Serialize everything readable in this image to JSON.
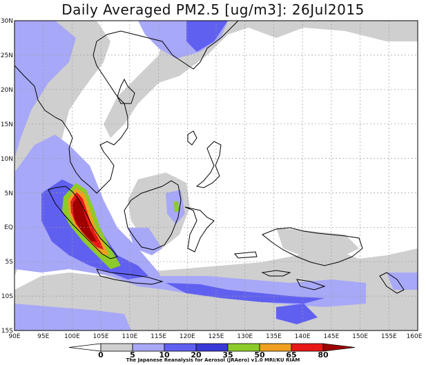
{
  "title": "Daily Averaged PM2.5 [ug/m3]: 26Jul2015",
  "x_ticks": [
    "90E",
    "95E",
    "100E",
    "105E",
    "110E",
    "115E",
    "120E",
    "125E",
    "130E",
    "135E",
    "140E",
    "145E",
    "150E",
    "155E",
    "160E"
  ],
  "y_ticks": [
    "30N",
    "25N",
    "20N",
    "15N",
    "10N",
    "5N",
    "EQ",
    "5S",
    "10S",
    "15S"
  ],
  "colorbar": {
    "labels": [
      "0",
      "5",
      "10",
      "20",
      "35",
      "50",
      "65",
      "80"
    ],
    "colors": [
      "#ffffff",
      "#cfcfcf",
      "#a8a8f8",
      "#6060f0",
      "#3838d8",
      "#8ccc28",
      "#f0a020",
      "#e81818",
      "#a00000"
    ]
  },
  "credit": "The Japanese Reanalysis for Aerosol (JRAero) v1.0 MRI/KU RIAM",
  "chart_data": {
    "type": "heatmap",
    "title": "Daily Averaged PM2.5 [ug/m3]: 26Jul2015",
    "xlim": [
      "90E",
      "160E"
    ],
    "ylim": [
      "15S",
      "30N"
    ],
    "grid": true,
    "legend": "bottom",
    "levels": [
      0,
      5,
      10,
      20,
      35,
      50,
      65,
      80
    ],
    "max_region": "central Sumatra, ~100E-104E, 4N-5S, above 80"
  }
}
